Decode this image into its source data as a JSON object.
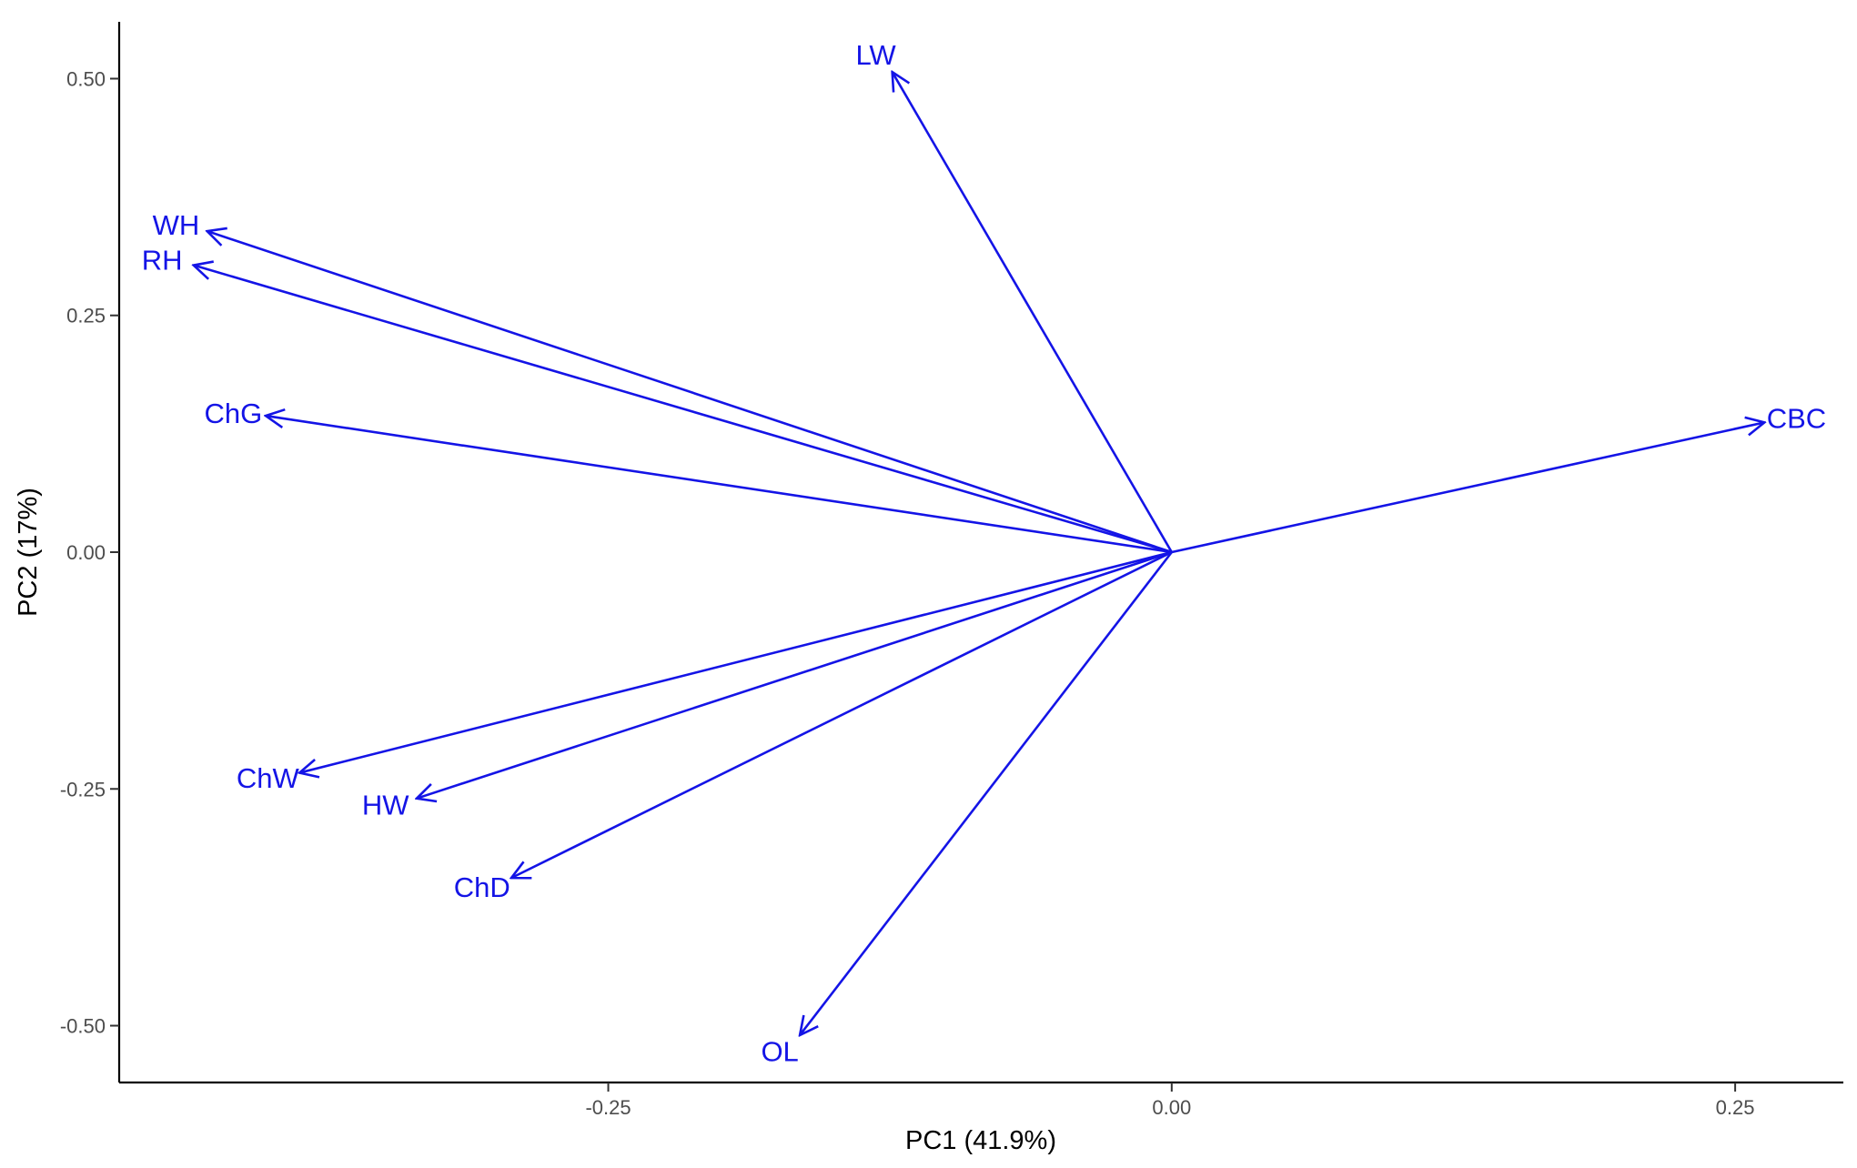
{
  "chart_data": {
    "type": "biplot",
    "xlabel": "PC1 (41.9%)",
    "ylabel": "PC2 (17%)",
    "xlim": [
      -0.467,
      0.298
    ],
    "ylim": [
      -0.56,
      0.56
    ],
    "x_ticks": [
      {
        "value": -0.25,
        "label": "-0.25"
      },
      {
        "value": 0.0,
        "label": "0.00"
      },
      {
        "value": 0.25,
        "label": "0.25"
      }
    ],
    "y_ticks": [
      {
        "value": 0.5,
        "label": "0.50"
      },
      {
        "value": 0.25,
        "label": "0.25"
      },
      {
        "value": 0.0,
        "label": "0.00"
      },
      {
        "value": -0.25,
        "label": "-0.25"
      },
      {
        "value": -0.5,
        "label": "-0.50"
      }
    ],
    "grid": false,
    "arrow_color": "#1414e6",
    "vectors": [
      {
        "name": "LW",
        "x": -0.124,
        "y": 0.507
      },
      {
        "name": "WH",
        "x": -0.428,
        "y": 0.339
      },
      {
        "name": "RH",
        "x": -0.434,
        "y": 0.303
      },
      {
        "name": "ChG",
        "x": -0.402,
        "y": 0.144
      },
      {
        "name": "CBC",
        "x": 0.263,
        "y": 0.137
      },
      {
        "name": "ChW",
        "x": -0.387,
        "y": -0.233
      },
      {
        "name": "HW",
        "x": -0.335,
        "y": -0.26
      },
      {
        "name": "ChD",
        "x": -0.293,
        "y": -0.344
      },
      {
        "name": "OL",
        "x": -0.165,
        "y": -0.51
      }
    ]
  }
}
